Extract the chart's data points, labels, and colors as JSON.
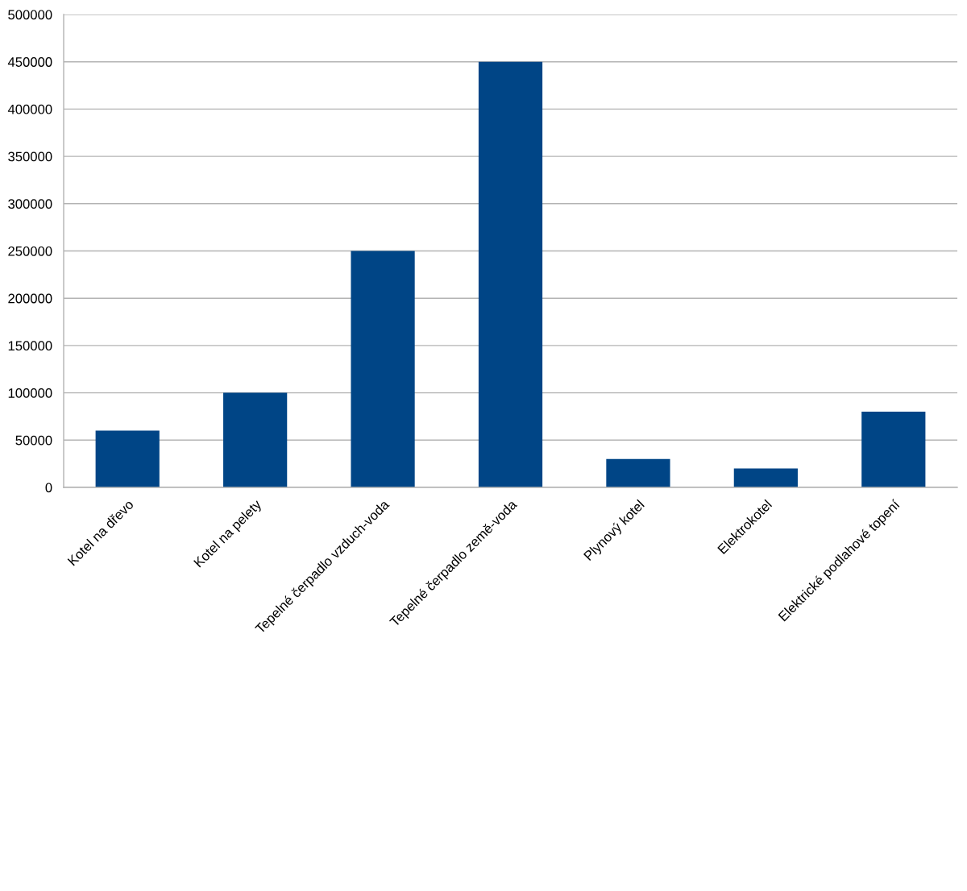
{
  "chart_data": {
    "type": "bar",
    "categories": [
      "Kotel na dřevo",
      "Kotel na pelety",
      "Tepelné čerpadlo vzduch-voda",
      "Tepelné čerpadlo země-voda",
      "Plynový kotel",
      "Elektrokotel",
      "Elektrické podlahové topení"
    ],
    "values": [
      60000,
      100000,
      250000,
      450000,
      30000,
      20000,
      80000
    ],
    "color": "#004586",
    "ylim": [
      0,
      500000
    ],
    "yticks": [
      0,
      50000,
      100000,
      150000,
      200000,
      250000,
      300000,
      350000,
      400000,
      450000,
      500000
    ],
    "grid": "y"
  }
}
